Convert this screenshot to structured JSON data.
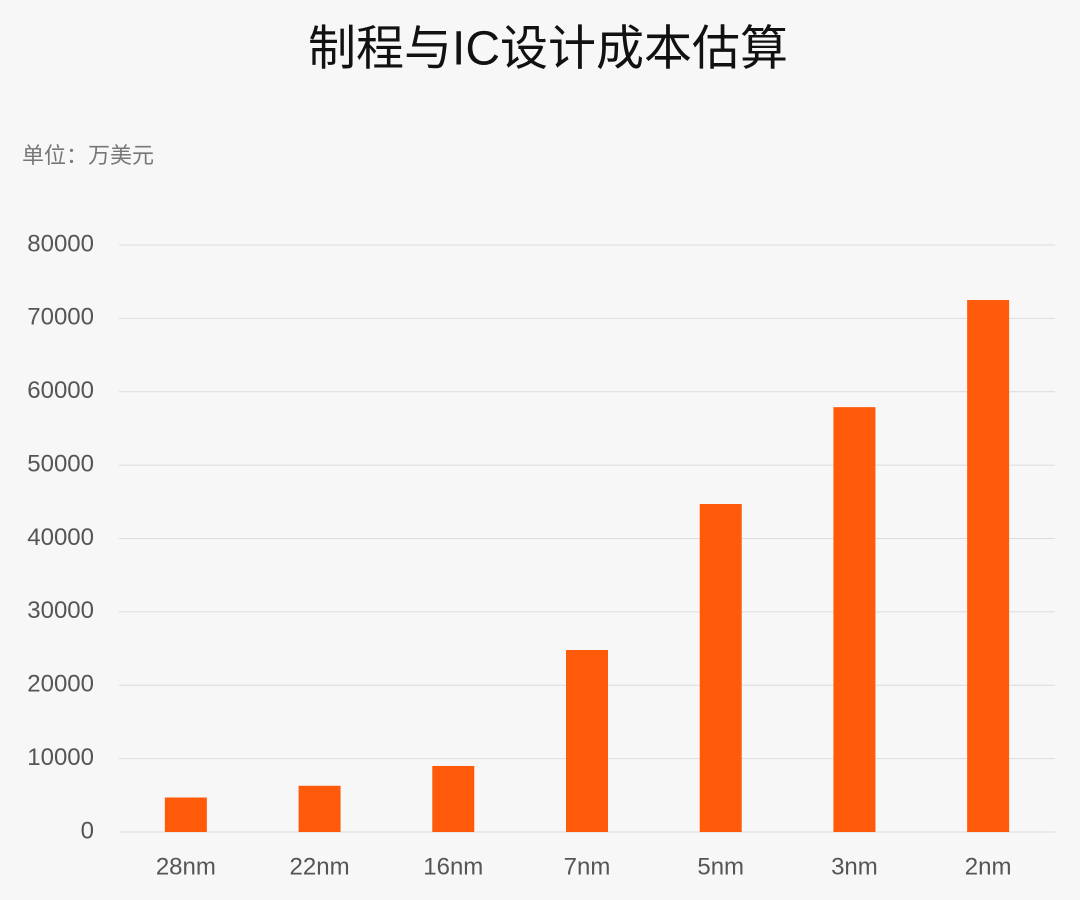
{
  "chart_data": {
    "type": "bar",
    "title": "制程与IC设计成本估算",
    "subtitle": "单位：万美元",
    "categories": [
      "28nm",
      "22nm",
      "16nm",
      "7nm",
      "5nm",
      "3nm",
      "2nm"
    ],
    "values": [
      4700,
      6300,
      9000,
      24800,
      44700,
      57900,
      72500
    ],
    "color": "#ff5a0a",
    "ylim": [
      0,
      80000
    ],
    "yticks": [
      0,
      10000,
      20000,
      30000,
      40000,
      50000,
      60000,
      70000,
      80000
    ],
    "grid": true
  }
}
